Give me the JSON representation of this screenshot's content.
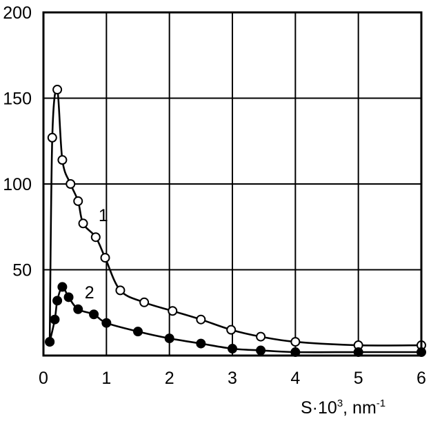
{
  "chart_data": {
    "type": "line",
    "xlabel_base": "S·10",
    "xlabel_exp": "3",
    "xlabel_unit": ", nm",
    "xlabel_unit_exp": "-1",
    "ylabel": "",
    "xlim": [
      0,
      6
    ],
    "ylim": [
      0,
      200
    ],
    "x_ticks": [
      "0",
      "1",
      "2",
      "3",
      "4",
      "5",
      "6"
    ],
    "y_ticks": [
      "50",
      "100",
      "150",
      "200"
    ],
    "grid": true,
    "series": [
      {
        "name": "1",
        "marker": "open-circle",
        "points": [
          [
            0.1,
            8
          ],
          [
            0.14,
            127
          ],
          [
            0.22,
            155
          ],
          [
            0.3,
            114
          ],
          [
            0.43,
            100
          ],
          [
            0.55,
            90
          ],
          [
            0.63,
            77
          ],
          [
            0.83,
            69
          ],
          [
            0.98,
            57
          ],
          [
            1.22,
            38
          ],
          [
            1.6,
            31
          ],
          [
            2.05,
            26
          ],
          [
            2.5,
            21
          ],
          [
            2.98,
            15
          ],
          [
            3.45,
            11
          ],
          [
            4.0,
            8
          ],
          [
            5.0,
            6
          ],
          [
            6.0,
            6
          ]
        ]
      },
      {
        "name": "2",
        "marker": "filled-circle",
        "points": [
          [
            0.1,
            8
          ],
          [
            0.18,
            21
          ],
          [
            0.22,
            32
          ],
          [
            0.3,
            40
          ],
          [
            0.4,
            34
          ],
          [
            0.55,
            27
          ],
          [
            0.8,
            24
          ],
          [
            1.0,
            19
          ],
          [
            1.5,
            14
          ],
          [
            2.0,
            10
          ],
          [
            2.5,
            7
          ],
          [
            3.0,
            4
          ],
          [
            3.45,
            3
          ],
          [
            4.0,
            2
          ],
          [
            5.0,
            2
          ],
          [
            6.0,
            2
          ]
        ]
      }
    ],
    "annotations": [
      {
        "text": "1",
        "x": 0.95,
        "y": 82
      },
      {
        "text": "2",
        "x": 0.73,
        "y": 37
      }
    ]
  }
}
